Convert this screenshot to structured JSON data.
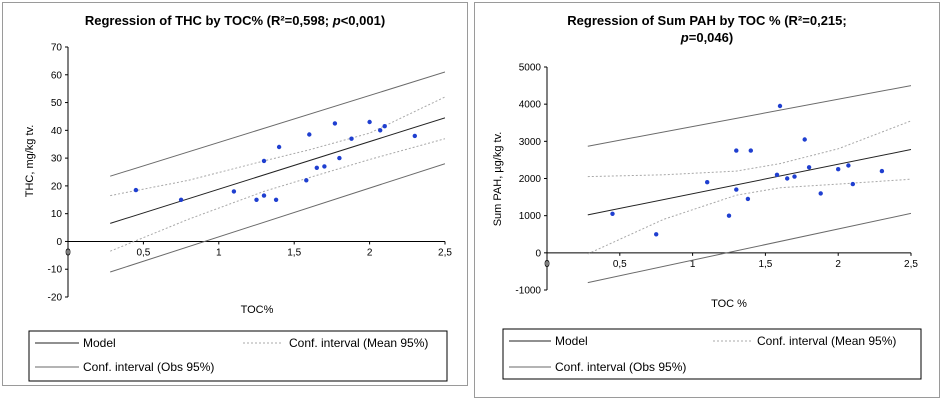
{
  "chart_data": [
    {
      "type": "scatter",
      "title": "Regression of THC by TOC% (R²=0,598; p<0,001)",
      "title_parts": [
        "Regression of THC by TOC% (R²=0,598; ",
        "p",
        "<0,001)"
      ],
      "xlabel": "TOC%",
      "ylabel": "THC, mg/kg tv.",
      "xlim": [
        0,
        2.5
      ],
      "ylim": [
        -20,
        70
      ],
      "xticks": [
        0,
        0.5,
        1,
        1.5,
        2,
        2.5
      ],
      "xtick_labels": [
        "0",
        "0,5",
        "1",
        "1,5",
        "2",
        "2,5"
      ],
      "yticks": [
        -20,
        -10,
        0,
        10,
        20,
        30,
        40,
        50,
        60,
        70
      ],
      "ytick_labels": [
        "-20",
        "-10",
        "0",
        "10",
        "20",
        "30",
        "40",
        "50",
        "60",
        "70"
      ],
      "points": {
        "x": [
          0.45,
          0.75,
          1.1,
          1.25,
          1.3,
          1.3,
          1.38,
          1.4,
          1.58,
          1.6,
          1.65,
          1.7,
          1.77,
          1.8,
          1.88,
          2.0,
          2.07,
          2.1,
          2.3
        ],
        "y": [
          18.5,
          15,
          18,
          15,
          16.5,
          29,
          15,
          34,
          22,
          38.5,
          26.5,
          27,
          42.5,
          30,
          37,
          43,
          40,
          41.5,
          38
        ]
      },
      "model": {
        "x": [
          0.28,
          2.5
        ],
        "y": [
          6.5,
          44.5
        ]
      },
      "mean_ci_upper": {
        "x": [
          0.28,
          0.8,
          1.3,
          1.6,
          2.0,
          2.5
        ],
        "y": [
          16.5,
          22,
          29,
          33,
          39,
          52
        ]
      },
      "mean_ci_lower": {
        "x": [
          0.28,
          0.8,
          1.3,
          1.6,
          2.0,
          2.5
        ],
        "y": [
          -3.5,
          8,
          18,
          23,
          29.5,
          37
        ]
      },
      "obs_ci_upper": {
        "x": [
          0.28,
          2.5
        ],
        "y": [
          23.5,
          61
        ]
      },
      "obs_ci_lower": {
        "x": [
          0.28,
          2.5
        ],
        "y": [
          -11,
          28
        ]
      },
      "legend": [
        "Model",
        "Conf. interval (Mean 95%)",
        "Conf. interval (Obs 95%)"
      ]
    },
    {
      "type": "scatter",
      "title_line1": "Regression of Sum PAH by TOC % (R²=0,215;",
      "title_line2_parts": [
        "p",
        "=0,046)"
      ],
      "xlabel": "TOC  %",
      "ylabel": "Sum PAH, µg/kg tv.",
      "xlim": [
        0,
        2.5
      ],
      "ylim": [
        -1000,
        5000
      ],
      "xticks": [
        0,
        0.5,
        1,
        1.5,
        2,
        2.5
      ],
      "xtick_labels": [
        "0",
        "0,5",
        "1",
        "1,5",
        "2",
        "2,5"
      ],
      "yticks": [
        -1000,
        0,
        1000,
        2000,
        3000,
        4000,
        5000
      ],
      "ytick_labels": [
        "-1000",
        "0",
        "1000",
        "2000",
        "3000",
        "4000",
        "5000"
      ],
      "points": {
        "x": [
          0.45,
          0.75,
          1.1,
          1.25,
          1.3,
          1.3,
          1.38,
          1.4,
          1.58,
          1.6,
          1.65,
          1.7,
          1.77,
          1.8,
          1.88,
          2.0,
          2.07,
          2.1,
          2.3
        ],
        "y": [
          1050,
          500,
          1900,
          1000,
          1700,
          2750,
          1450,
          2750,
          2100,
          3950,
          2000,
          2050,
          3050,
          2300,
          1600,
          2250,
          2350,
          1850,
          2200
        ]
      },
      "model": {
        "x": [
          0.28,
          2.5
        ],
        "y": [
          1020,
          2780
        ]
      },
      "mean_ci_upper": {
        "x": [
          0.28,
          0.8,
          1.3,
          1.6,
          2.0,
          2.5
        ],
        "y": [
          2050,
          2100,
          2200,
          2400,
          2800,
          3550
        ]
      },
      "mean_ci_lower": {
        "x": [
          0.28,
          0.8,
          1.3,
          1.6,
          2.0,
          2.5
        ],
        "y": [
          -30,
          900,
          1550,
          1750,
          1850,
          1980
        ]
      },
      "obs_ci_upper": {
        "x": [
          0.28,
          2.5
        ],
        "y": [
          2870,
          4500
        ]
      },
      "obs_ci_lower": {
        "x": [
          0.28,
          2.5
        ],
        "y": [
          -800,
          1060
        ]
      },
      "legend": [
        "Model",
        "Conf. interval (Mean 95%)",
        "Conf. interval (Obs 95%)"
      ]
    }
  ],
  "colors": {
    "point": "#1f3fd0",
    "model": "#222222",
    "mean_ci": "#a8a8a8",
    "obs_ci": "#6a6a6a",
    "axis": "#000000"
  }
}
